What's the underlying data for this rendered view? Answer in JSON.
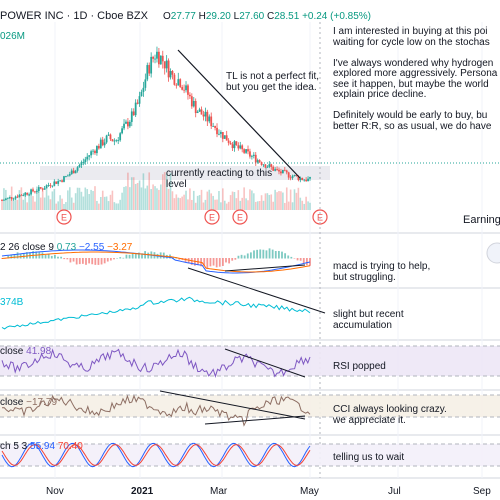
{
  "header": {
    "title": "POWER INC · 1D · Cboe BZX",
    "open_label": "O",
    "open": "27.77",
    "high_label": "H",
    "high": "29.20",
    "low_label": "L",
    "low": "27.60",
    "close_label": "C",
    "close": "28.51",
    "change": "+0.24 (+0.85%)",
    "volume_fragment": "026M"
  },
  "colors": {
    "up": "#26a69a",
    "down": "#ef5350",
    "macd": "#2962ff",
    "signal": "#ff6d00",
    "obv": "#00bcd4",
    "rsi": "#7e57c2",
    "cci": "#8d6e63",
    "stoch_k": "#2962ff",
    "stoch_d": "#f44336"
  },
  "notes": {
    "main_text": "I am interested in buying at this poi\nwaiting for cycle low on the stochas\n\nI've always wondered why hydrogen\nexplored more aggressively. Persona\nsee it happen, but maybe the world\nexplain price decline.\n\nDefinitely would be early to buy, bu\nbetter R:R, so as usual, we do have",
    "tl": "TL is not a perfect fit,\nbut you get the idea.",
    "reacting": "currently reacting to this\nlevel",
    "earnings": "Earning",
    "macd": "macd is trying to help,\nbut struggling.",
    "obv": "slight but recent\naccumulation",
    "rsi": "RSI popped",
    "cci": "CCI always looking crazy.\nwe appreciate it.",
    "stoch": "telling us to wait"
  },
  "indicators": {
    "macd_prefix": "2 26 close 9",
    "macd_vals": [
      "0.73",
      "−2.55",
      "−3.27"
    ],
    "obv_value": "374B",
    "rsi_label": "close",
    "rsi_value": "41.98",
    "cci_label": "close",
    "cci_value": "−17.79",
    "stoch_label": "ch 5 3",
    "stoch_k": "55.94",
    "stoch_d": "70.40"
  },
  "earnings_marker": "E",
  "chart_data": {
    "type": "candlestick",
    "title": "POWER INC · 1D · Cboe BZX",
    "ohlc_last": {
      "open": 27.77,
      "high": 29.2,
      "low": 27.6,
      "close": 28.51
    },
    "time_axis_labels": [
      "Nov",
      "2021",
      "Mar",
      "May",
      "Jul",
      "Sep"
    ],
    "price_shape": [
      20,
      21,
      22,
      23,
      24,
      25,
      27,
      28,
      30,
      33,
      36,
      40,
      43,
      46,
      45,
      50,
      55,
      62,
      75,
      82,
      78,
      72,
      70,
      64,
      58,
      55,
      52,
      48,
      45,
      42,
      40,
      38,
      36,
      34,
      32,
      31,
      30,
      29,
      28.5
    ],
    "indicators": {
      "macd": {
        "macd": 0.73,
        "signal": -2.55,
        "histogram": -3.27
      },
      "obv": "374B",
      "rsi": 41.98,
      "cci": -17.79,
      "stoch": {
        "k": 55.94,
        "d": 70.4
      }
    }
  }
}
